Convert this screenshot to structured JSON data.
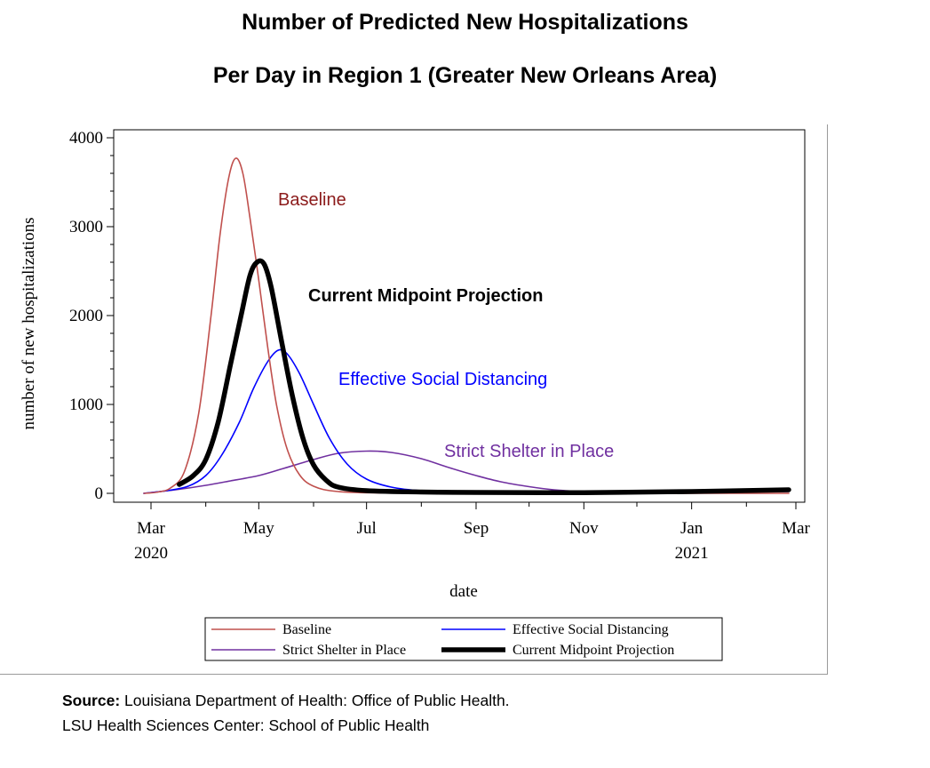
{
  "title_line1": "Number of Predicted New Hospitalizations",
  "title_line2": "Per Day in Region 1 (Greater New Orleans Area)",
  "source": {
    "bold_label": "Source:",
    "line1_text": " Louisiana Department of Health: Office of Public Health.",
    "line2_text": "LSU Health Sciences Center: School of Public Health"
  },
  "chart_data": {
    "type": "line",
    "xlabel": "date",
    "ylabel": "number of new hospitalizations",
    "x_unit": "date",
    "xlim": [
      "2020-02-20",
      "2021-03-01"
    ],
    "ylim": [
      0,
      4000
    ],
    "yticks": [
      0,
      1000,
      2000,
      3000,
      4000
    ],
    "xticks": [
      {
        "date": "2020-03-01",
        "label": "Mar",
        "sub": "2020"
      },
      {
        "date": "2020-05-01",
        "label": "May",
        "sub": ""
      },
      {
        "date": "2020-07-01",
        "label": "Jul",
        "sub": ""
      },
      {
        "date": "2020-09-01",
        "label": "Sep",
        "sub": ""
      },
      {
        "date": "2020-11-01",
        "label": "Nov",
        "sub": ""
      },
      {
        "date": "2021-01-01",
        "label": "Jan",
        "sub": "2021"
      },
      {
        "date": "2021-03-01",
        "label": "Mar",
        "sub": ""
      }
    ],
    "grid": false,
    "legend_position": "bottom",
    "series": [
      {
        "name": "Baseline",
        "color": "#c0504d",
        "annotation": "Baseline",
        "annotation_color": "#8b1a1a",
        "points": [
          [
            "2020-02-26",
            0
          ],
          [
            "2020-03-05",
            15
          ],
          [
            "2020-03-12",
            60
          ],
          [
            "2020-03-20",
            250
          ],
          [
            "2020-03-28",
            900
          ],
          [
            "2020-04-04",
            2000
          ],
          [
            "2020-04-09",
            2900
          ],
          [
            "2020-04-14",
            3550
          ],
          [
            "2020-04-18",
            3770
          ],
          [
            "2020-04-22",
            3600
          ],
          [
            "2020-04-26",
            3100
          ],
          [
            "2020-05-01",
            2400
          ],
          [
            "2020-05-06",
            1650
          ],
          [
            "2020-05-11",
            1000
          ],
          [
            "2020-05-17",
            500
          ],
          [
            "2020-05-24",
            210
          ],
          [
            "2020-06-01",
            80
          ],
          [
            "2020-06-15",
            20
          ],
          [
            "2020-07-15",
            5
          ],
          [
            "2020-10-01",
            2
          ],
          [
            "2021-02-25",
            0
          ]
        ]
      },
      {
        "name": "Effective Social Distancing",
        "color": "#0000ff",
        "annotation": "Effective Social Distancing",
        "annotation_color": "#0000ff",
        "points": [
          [
            "2020-02-26",
            0
          ],
          [
            "2020-03-10",
            30
          ],
          [
            "2020-03-22",
            80
          ],
          [
            "2020-04-01",
            200
          ],
          [
            "2020-04-10",
            430
          ],
          [
            "2020-04-20",
            800
          ],
          [
            "2020-04-28",
            1180
          ],
          [
            "2020-05-06",
            1480
          ],
          [
            "2020-05-12",
            1610
          ],
          [
            "2020-05-17",
            1570
          ],
          [
            "2020-05-24",
            1350
          ],
          [
            "2020-06-01",
            1000
          ],
          [
            "2020-06-10",
            620
          ],
          [
            "2020-06-20",
            330
          ],
          [
            "2020-07-01",
            160
          ],
          [
            "2020-07-15",
            70
          ],
          [
            "2020-08-01",
            30
          ],
          [
            "2020-09-01",
            10
          ],
          [
            "2020-11-01",
            5
          ],
          [
            "2021-02-25",
            30
          ]
        ]
      },
      {
        "name": "Strict Shelter in Place",
        "color": "#7030a0",
        "annotation": "Strict Shelter in Place",
        "annotation_color": "#7030a0",
        "points": [
          [
            "2020-02-26",
            0
          ],
          [
            "2020-03-15",
            40
          ],
          [
            "2020-04-01",
            90
          ],
          [
            "2020-04-15",
            140
          ],
          [
            "2020-05-01",
            200
          ],
          [
            "2020-05-15",
            280
          ],
          [
            "2020-06-01",
            380
          ],
          [
            "2020-06-15",
            450
          ],
          [
            "2020-07-01",
            475
          ],
          [
            "2020-07-15",
            460
          ],
          [
            "2020-08-01",
            390
          ],
          [
            "2020-08-15",
            300
          ],
          [
            "2020-09-01",
            200
          ],
          [
            "2020-09-15",
            130
          ],
          [
            "2020-10-01",
            75
          ],
          [
            "2020-10-15",
            40
          ],
          [
            "2020-11-01",
            20
          ],
          [
            "2020-12-01",
            10
          ],
          [
            "2021-02-25",
            20
          ]
        ]
      },
      {
        "name": "Current Midpoint Projection",
        "color": "#000000",
        "annotation": "Current Midpoint Projection",
        "annotation_color": "#000000",
        "thick": true,
        "points": [
          [
            "2020-03-17",
            100
          ],
          [
            "2020-03-25",
            200
          ],
          [
            "2020-04-01",
            380
          ],
          [
            "2020-04-08",
            800
          ],
          [
            "2020-04-15",
            1450
          ],
          [
            "2020-04-21",
            2000
          ],
          [
            "2020-04-26",
            2450
          ],
          [
            "2020-04-30",
            2600
          ],
          [
            "2020-05-04",
            2580
          ],
          [
            "2020-05-08",
            2320
          ],
          [
            "2020-05-14",
            1700
          ],
          [
            "2020-05-20",
            1100
          ],
          [
            "2020-05-26",
            620
          ],
          [
            "2020-06-01",
            320
          ],
          [
            "2020-06-08",
            150
          ],
          [
            "2020-06-15",
            70
          ],
          [
            "2020-07-01",
            30
          ],
          [
            "2020-08-01",
            15
          ],
          [
            "2020-09-01",
            10
          ],
          [
            "2020-11-01",
            8
          ],
          [
            "2021-01-01",
            20
          ],
          [
            "2021-02-25",
            40
          ]
        ]
      }
    ]
  }
}
